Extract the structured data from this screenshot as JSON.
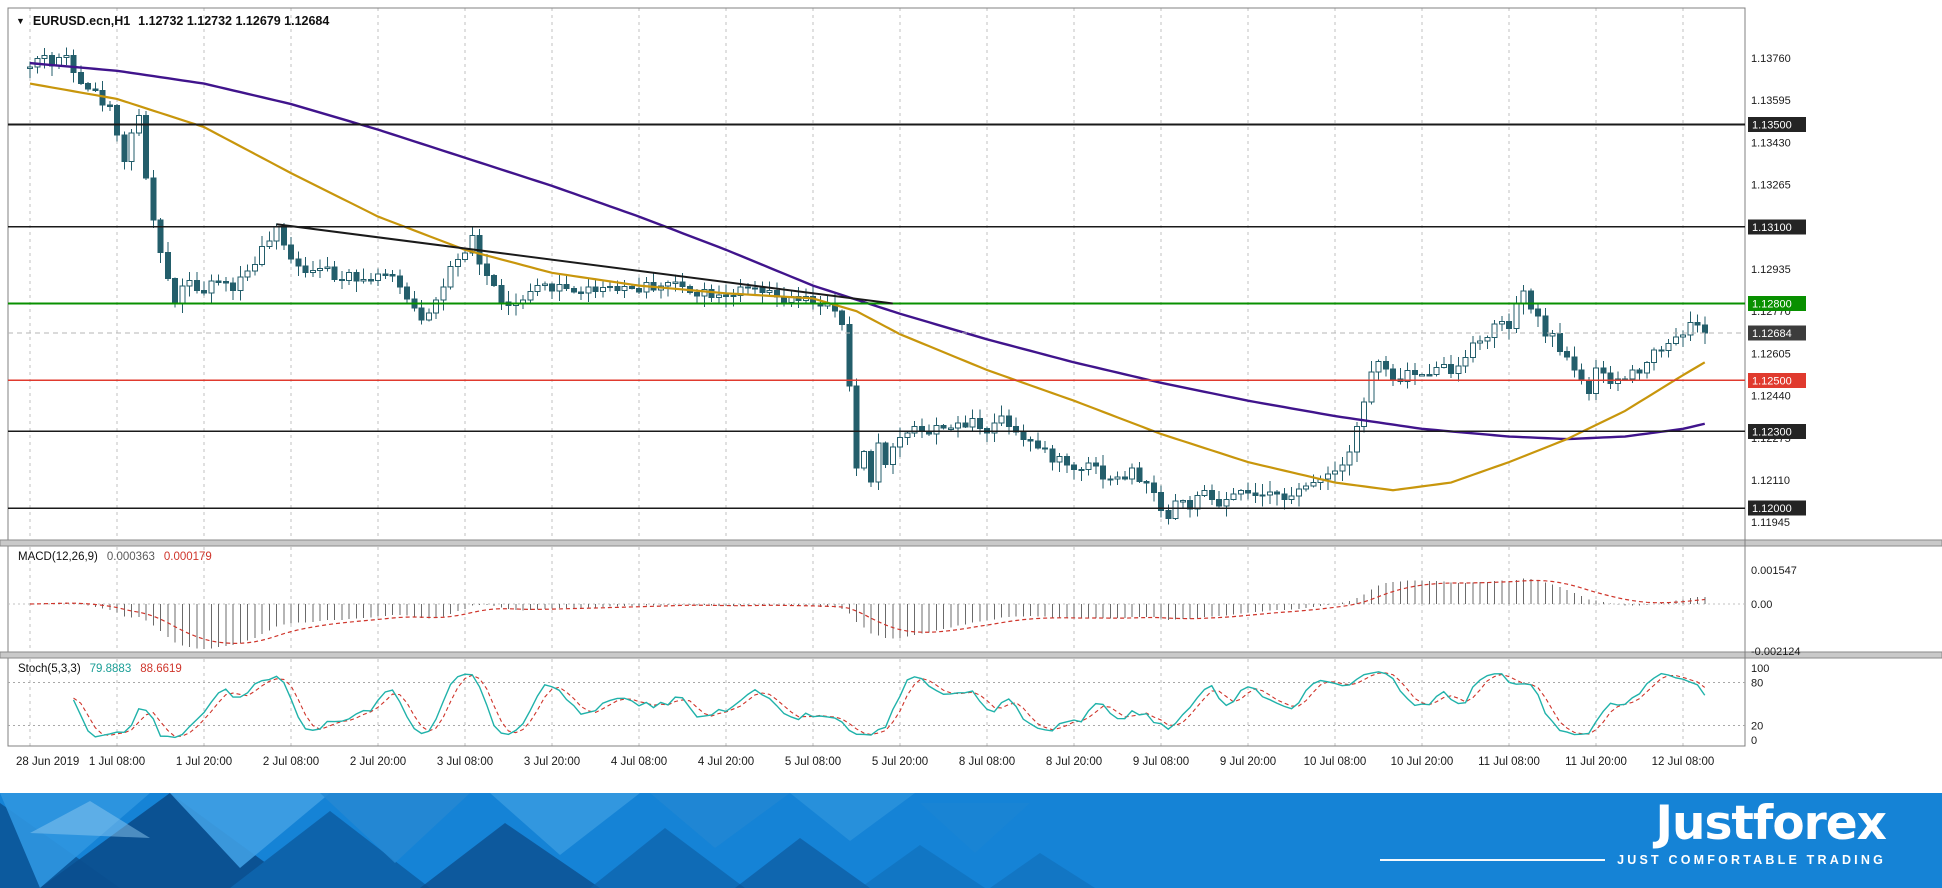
{
  "header": {
    "symbol_period": "EURUSD.ecn,H1",
    "ohlc_values": "1.12732 1.12732 1.12679 1.12684"
  },
  "colors": {
    "candle_down": "#235e6b",
    "candle_up_fill": "#ffffff",
    "ma_fast": "#c8960c",
    "ma_slow": "#40148c",
    "hline_black": "#1a1a1a",
    "hline_green": "#089000",
    "hline_red": "#e03a2e",
    "badge_black": "#242424",
    "badge_current": "#3c3c3c",
    "macd_hist": "#6b6b6b",
    "signal_red": "#cf352b",
    "stoch_k": "#20b2aa",
    "grid": "#c2c2c2",
    "axis": "#808080",
    "trendline": "#1a1a1a",
    "banner_bg": "#1583d6"
  },
  "chart_data": [
    {
      "type": "candlestick",
      "symbol": "EURUSD.ecn",
      "timeframe": "H1",
      "current_ohlc": {
        "open": 1.12732,
        "high": 1.12732,
        "low": 1.12679,
        "close": 1.12684
      },
      "ylim": [
        1.11876,
        1.13955
      ],
      "y_ticks": [
        1.1376,
        1.13595,
        1.1343,
        1.13265,
        1.131,
        1.12935,
        1.1277,
        1.12605,
        1.1244,
        1.12275,
        1.1211,
        1.11945
      ],
      "x_labels": [
        "28 Jun 2019",
        "1 Jul 08:00",
        "1 Jul 20:00",
        "2 Jul 08:00",
        "2 Jul 20:00",
        "3 Jul 08:00",
        "3 Jul 20:00",
        "4 Jul 08:00",
        "4 Jul 20:00",
        "5 Jul 08:00",
        "5 Jul 20:00",
        "8 Jul 08:00",
        "8 Jul 20:00",
        "9 Jul 08:00",
        "9 Jul 20:00",
        "10 Jul 08:00",
        "10 Jul 20:00",
        "11 Jul 08:00",
        "11 Jul 20:00",
        "12 Jul 08:00"
      ],
      "bars_per_interval": 12,
      "bars_total": 232,
      "price_path": [
        [
          0,
          1.1372
        ],
        [
          2,
          1.1378
        ],
        [
          3,
          1.1373
        ],
        [
          5,
          1.1377
        ],
        [
          7,
          1.1368
        ],
        [
          9,
          1.1362
        ],
        [
          11,
          1.1356
        ],
        [
          12,
          1.1348
        ],
        [
          13,
          1.1335
        ],
        [
          14,
          1.1348
        ],
        [
          15,
          1.1352
        ],
        [
          16,
          1.133
        ],
        [
          17,
          1.1312
        ],
        [
          18,
          1.1298
        ],
        [
          19,
          1.129
        ],
        [
          20,
          1.1282
        ],
        [
          21,
          1.1287
        ],
        [
          22,
          1.1291
        ],
        [
          23,
          1.1286
        ],
        [
          24,
          1.1284
        ],
        [
          26,
          1.1289
        ],
        [
          28,
          1.1286
        ],
        [
          30,
          1.1293
        ],
        [
          32,
          1.1301
        ],
        [
          34,
          1.1308
        ],
        [
          35,
          1.1302
        ],
        [
          36,
          1.1299
        ],
        [
          38,
          1.1293
        ],
        [
          40,
          1.1296
        ],
        [
          42,
          1.1289
        ],
        [
          44,
          1.1293
        ],
        [
          46,
          1.1289
        ],
        [
          48,
          1.1292
        ],
        [
          50,
          1.1289
        ],
        [
          52,
          1.1283
        ],
        [
          54,
          1.1275
        ],
        [
          56,
          1.1281
        ],
        [
          58,
          1.1293
        ],
        [
          60,
          1.1298
        ],
        [
          61,
          1.1306
        ],
        [
          62,
          1.1296
        ],
        [
          64,
          1.1286
        ],
        [
          66,
          1.1278
        ],
        [
          68,
          1.1281
        ],
        [
          70,
          1.1285
        ],
        [
          72,
          1.1287
        ],
        [
          76,
          1.1285
        ],
        [
          80,
          1.1287
        ],
        [
          84,
          1.1286
        ],
        [
          88,
          1.1288
        ],
        [
          92,
          1.1285
        ],
        [
          96,
          1.1284
        ],
        [
          100,
          1.1285
        ],
        [
          104,
          1.1281
        ],
        [
          108,
          1.1281
        ],
        [
          110,
          1.1279
        ],
        [
          112,
          1.1272
        ],
        [
          113,
          1.1246
        ],
        [
          114,
          1.1216
        ],
        [
          115,
          1.1222
        ],
        [
          116,
          1.1212
        ],
        [
          117,
          1.1224
        ],
        [
          118,
          1.1219
        ],
        [
          120,
          1.1227
        ],
        [
          122,
          1.1233
        ],
        [
          124,
          1.1229
        ],
        [
          126,
          1.1233
        ],
        [
          128,
          1.1231
        ],
        [
          130,
          1.1234
        ],
        [
          132,
          1.1231
        ],
        [
          134,
          1.1236
        ],
        [
          136,
          1.1231
        ],
        [
          138,
          1.1226
        ],
        [
          140,
          1.1221
        ],
        [
          142,
          1.1219
        ],
        [
          144,
          1.1215
        ],
        [
          146,
          1.1219
        ],
        [
          148,
          1.1213
        ],
        [
          150,
          1.1211
        ],
        [
          152,
          1.1214
        ],
        [
          154,
          1.1209
        ],
        [
          156,
          1.1201
        ],
        [
          157,
          1.1196
        ],
        [
          158,
          1.1203
        ],
        [
          160,
          1.1201
        ],
        [
          162,
          1.1205
        ],
        [
          164,
          1.1201
        ],
        [
          166,
          1.1204
        ],
        [
          168,
          1.1206
        ],
        [
          170,
          1.1203
        ],
        [
          172,
          1.1207
        ],
        [
          174,
          1.1204
        ],
        [
          176,
          1.1208
        ],
        [
          178,
          1.1213
        ],
        [
          180,
          1.1215
        ],
        [
          182,
          1.1223
        ],
        [
          184,
          1.1241
        ],
        [
          185,
          1.1253
        ],
        [
          186,
          1.1257
        ],
        [
          188,
          1.1249
        ],
        [
          190,
          1.1253
        ],
        [
          192,
          1.1251
        ],
        [
          194,
          1.1257
        ],
        [
          196,
          1.1253
        ],
        [
          198,
          1.1261
        ],
        [
          200,
          1.1265
        ],
        [
          202,
          1.1271
        ],
        [
          204,
          1.1271
        ],
        [
          205,
          1.1278
        ],
        [
          206,
          1.1283
        ],
        [
          207,
          1.1279
        ],
        [
          208,
          1.1273
        ],
        [
          210,
          1.1266
        ],
        [
          212,
          1.1259
        ],
        [
          214,
          1.1251
        ],
        [
          215,
          1.1245
        ],
        [
          216,
          1.1253
        ],
        [
          218,
          1.1249
        ],
        [
          220,
          1.1251
        ],
        [
          222,
          1.1255
        ],
        [
          224,
          1.1261
        ],
        [
          226,
          1.1265
        ],
        [
          228,
          1.1269
        ],
        [
          230,
          1.1273
        ],
        [
          231,
          1.12684
        ]
      ],
      "ma_fast_anchors": [
        [
          0,
          1.1366
        ],
        [
          12,
          1.136
        ],
        [
          24,
          1.1349
        ],
        [
          36,
          1.1331
        ],
        [
          48,
          1.1314
        ],
        [
          60,
          1.1301
        ],
        [
          72,
          1.1292
        ],
        [
          84,
          1.1287
        ],
        [
          96,
          1.1284
        ],
        [
          108,
          1.1282
        ],
        [
          114,
          1.1277
        ],
        [
          120,
          1.1268
        ],
        [
          132,
          1.1254
        ],
        [
          144,
          1.1242
        ],
        [
          156,
          1.1229
        ],
        [
          168,
          1.1218
        ],
        [
          180,
          1.121
        ],
        [
          188,
          1.1207
        ],
        [
          196,
          1.121
        ],
        [
          204,
          1.1218
        ],
        [
          212,
          1.1227
        ],
        [
          220,
          1.1238
        ],
        [
          228,
          1.1252
        ],
        [
          231,
          1.1257
        ]
      ],
      "ma_slow_anchors": [
        [
          0,
          1.1374
        ],
        [
          12,
          1.1371
        ],
        [
          24,
          1.1366
        ],
        [
          36,
          1.1358
        ],
        [
          48,
          1.1348
        ],
        [
          60,
          1.1337
        ],
        [
          72,
          1.1326
        ],
        [
          84,
          1.1314
        ],
        [
          96,
          1.1301
        ],
        [
          108,
          1.1287
        ],
        [
          120,
          1.1276
        ],
        [
          132,
          1.1266
        ],
        [
          144,
          1.1257
        ],
        [
          156,
          1.1249
        ],
        [
          168,
          1.1242
        ],
        [
          180,
          1.1236
        ],
        [
          192,
          1.1231
        ],
        [
          204,
          1.1228
        ],
        [
          212,
          1.1227
        ],
        [
          220,
          1.1228
        ],
        [
          228,
          1.1231
        ],
        [
          231,
          1.1233
        ]
      ],
      "hlines": [
        {
          "price": 1.135,
          "color": "black"
        },
        {
          "price": 1.131,
          "color": "black"
        },
        {
          "price": 1.128,
          "color": "green"
        },
        {
          "price": 1.125,
          "color": "red"
        },
        {
          "price": 1.123,
          "color": "black"
        },
        {
          "price": 1.12,
          "color": "black"
        }
      ],
      "current_price": {
        "value": 1.12684
      },
      "trendline": {
        "bar1": 34,
        "price1": 1.1311,
        "bar2": 119,
        "price2": 1.128
      }
    },
    {
      "type": "macd-histogram",
      "name": "MACD(12,26,9)",
      "params": "12,26,9",
      "value_main": "0.000363",
      "value_signal": "0.000179",
      "ticks": [
        "0.001547",
        "0.00",
        "-0.002124"
      ]
    },
    {
      "type": "stochastic",
      "name": "Stoch(5,3,3)",
      "params": "5,3,3",
      "value_k": "79.8883",
      "value_d": "88.6619",
      "levels": [
        "100",
        "80",
        "20",
        "0"
      ],
      "overbought": 80,
      "oversold": 20
    }
  ],
  "banner": {
    "brand": "Justforex",
    "tagline": "JUST COMFORTABLE TRADING"
  }
}
